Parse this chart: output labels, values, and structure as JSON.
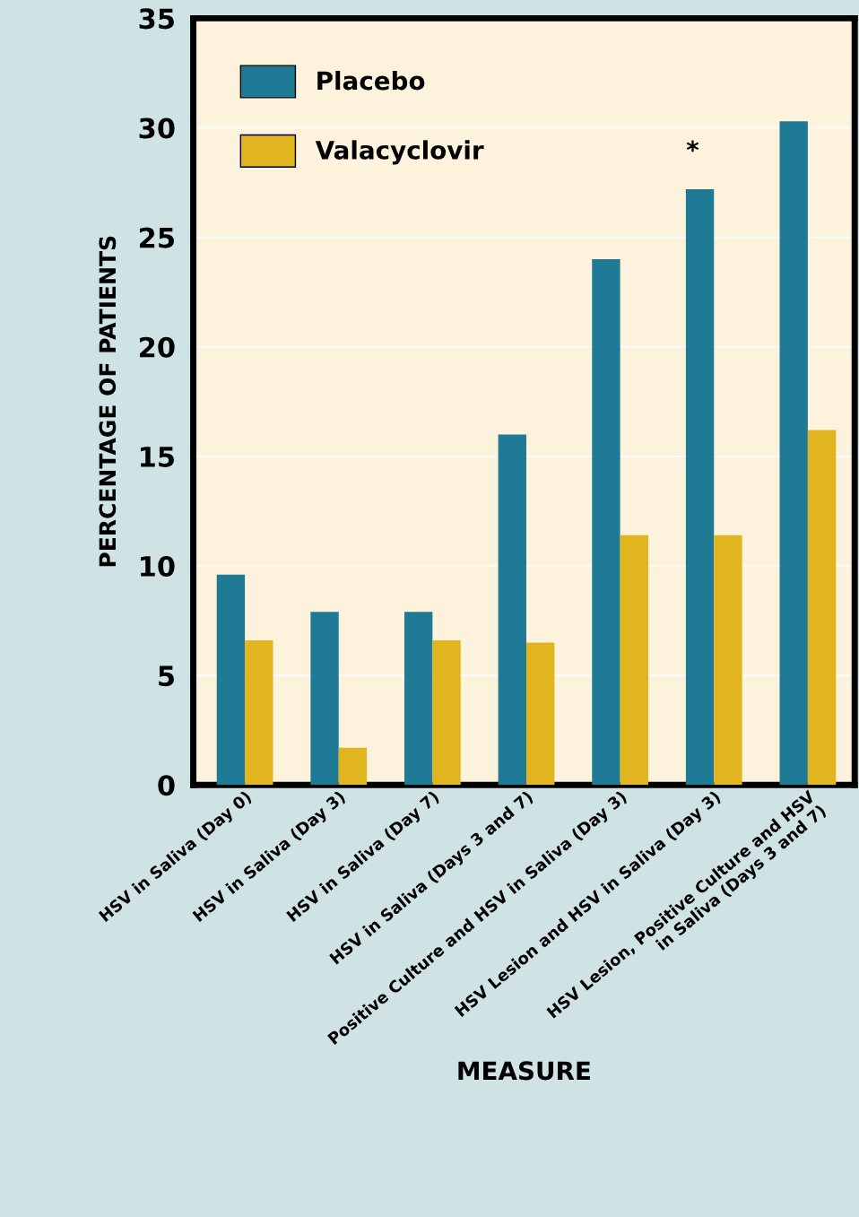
{
  "chart_data": {
    "type": "bar",
    "xlabel": "MEASURE",
    "ylabel": "PERCENTAGE OF PATIENTS",
    "categories": [
      "HSV in Saliva (Day 0)",
      "HSV in Saliva (Day 3)",
      "HSV in Saliva (Day 7)",
      "HSV in Saliva (Days 3 and 7)",
      "Positive Culture and HSV in Saliva (Day 3)",
      "HSV Lesion and HSV in Saliva (Day 3)",
      "HSV Lesion, Positive Culture and HSV\nin Saliva (Days 3 and 7)"
    ],
    "series": [
      {
        "name": "Placebo",
        "color": "#1f7a95",
        "values": [
          9.6,
          7.9,
          7.9,
          16,
          24,
          27.2,
          30.3
        ]
      },
      {
        "name": "Valacyclovir",
        "color": "#e0b520",
        "values": [
          6.6,
          1.7,
          6.6,
          6.5,
          11.4,
          11.4,
          16.2
        ]
      }
    ],
    "ylim": [
      0,
      35
    ],
    "yticks": [
      0,
      5,
      10,
      15,
      20,
      25,
      30,
      35
    ],
    "grid": "y",
    "legend": "top left",
    "annotations": [
      "*"
    ]
  }
}
